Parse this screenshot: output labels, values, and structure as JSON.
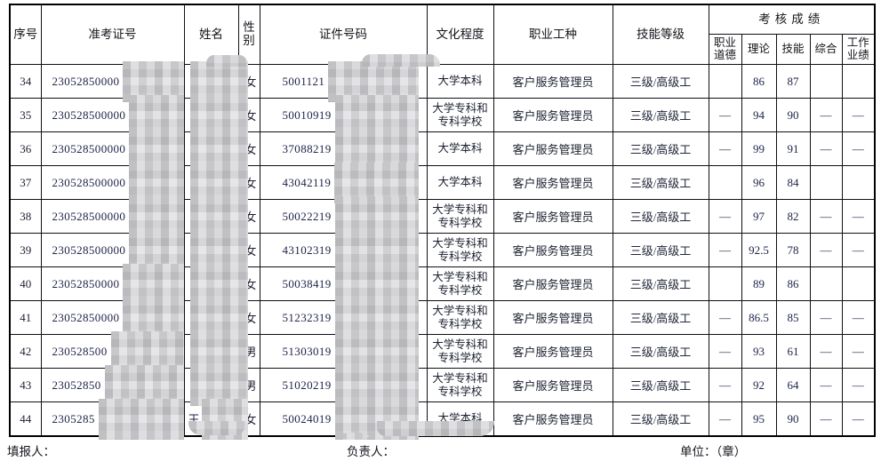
{
  "colors": {
    "border": "#000000",
    "text": "#1c2130",
    "digit_text": "#20264a",
    "redaction_gray": "#cdcdcf",
    "background": "#ffffff"
  },
  "table": {
    "headers": {
      "no": "序号",
      "ticket": "准考证号",
      "name": "姓名",
      "gender": "性别",
      "id_number": "证件号码",
      "education": "文化程度",
      "occupation": "职业工种",
      "skill_level": "技能等级",
      "scores_group": "考核成绩",
      "score_ethics": "职业道德",
      "score_theory": "理论",
      "score_skill": "技能",
      "score_comprehensive": "综合",
      "score_performance": "工作业绩"
    },
    "rows": [
      {
        "no": "34",
        "ticket_visible": "23052850000",
        "name_visible": "",
        "gender": "女",
        "id_visible": "5001121",
        "education": "大学本科",
        "occupation": "客户服务管理员",
        "skill_level": "三级/高级工",
        "ethics": "",
        "theory": "86",
        "skill": "87",
        "comprehensive": "",
        "performance": ""
      },
      {
        "no": "35",
        "ticket_visible": "230528500000",
        "name_visible": "",
        "gender": "女",
        "id_visible": "50010919",
        "education": "大学专科和专科学校",
        "occupation": "客户服务管理员",
        "skill_level": "三级/高级工",
        "ethics": "—",
        "theory": "94",
        "skill": "90",
        "comprehensive": "—",
        "performance": "—"
      },
      {
        "no": "36",
        "ticket_visible": "230528500000",
        "name_visible": "",
        "gender": "女",
        "id_visible": "37088219",
        "education": "大学本科",
        "occupation": "客户服务管理员",
        "skill_level": "三级/高级工",
        "ethics": "—",
        "theory": "99",
        "skill": "91",
        "comprehensive": "—",
        "performance": "—"
      },
      {
        "no": "37",
        "ticket_visible": "230528500000",
        "name_visible": "",
        "gender": "女",
        "id_visible": "43042119",
        "education": "大学本科",
        "occupation": "客户服务管理员",
        "skill_level": "三级/高级工",
        "ethics": "",
        "theory": "96",
        "skill": "84",
        "comprehensive": "",
        "performance": ""
      },
      {
        "no": "38",
        "ticket_visible": "230528500000",
        "name_visible": "",
        "gender": "女",
        "id_visible": "50022219",
        "education": "大学专科和专科学校",
        "occupation": "客户服务管理员",
        "skill_level": "三级/高级工",
        "ethics": "—",
        "theory": "97",
        "skill": "82",
        "comprehensive": "—",
        "performance": "—"
      },
      {
        "no": "39",
        "ticket_visible": "230528500000",
        "name_visible": "",
        "gender": "女",
        "id_visible": "43102319",
        "education": "大学专科和专科学校",
        "occupation": "客户服务管理员",
        "skill_level": "三级/高级工",
        "ethics": "—",
        "theory": "92.5",
        "skill": "78",
        "comprehensive": "—",
        "performance": "—"
      },
      {
        "no": "40",
        "ticket_visible": "23052850000",
        "name_visible": "",
        "gender": "女",
        "id_visible": "50038419",
        "education": "大学专科和专科学校",
        "occupation": "客户服务管理员",
        "skill_level": "三级/高级工",
        "ethics": "",
        "theory": "89",
        "skill": "86",
        "comprehensive": "",
        "performance": ""
      },
      {
        "no": "41",
        "ticket_visible": "23052850000",
        "name_visible": "",
        "gender": "女",
        "id_visible": "51232319",
        "education": "大学专科和专科学校",
        "occupation": "客户服务管理员",
        "skill_level": "三级/高级工",
        "ethics": "—",
        "theory": "86.5",
        "skill": "85",
        "comprehensive": "—",
        "performance": "—"
      },
      {
        "no": "42",
        "ticket_visible": "230528500",
        "name_visible": "",
        "gender": "男",
        "id_visible": "51303019",
        "education": "大学专科和专科学校",
        "occupation": "客户服务管理员",
        "skill_level": "三级/高级工",
        "ethics": "—",
        "theory": "93",
        "skill": "61",
        "comprehensive": "—",
        "performance": "—"
      },
      {
        "no": "43",
        "ticket_visible": "23052850",
        "name_visible": "",
        "gender": "男",
        "id_visible": "51020219",
        "education": "大学专科和专科学校",
        "occupation": "客户服务管理员",
        "skill_level": "三级/高级工",
        "ethics": "—",
        "theory": "92",
        "skill": "64",
        "comprehensive": "—",
        "performance": "—"
      },
      {
        "no": "44",
        "ticket_visible": "2305285",
        "name_visible": "王",
        "gender": "女",
        "id_visible": "50024019",
        "education": "大学本科",
        "occupation": "客户服务管理员",
        "skill_level": "三级/高级工",
        "ethics": "—",
        "theory": "95",
        "skill": "90",
        "comprehensive": "—",
        "performance": "—"
      }
    ]
  },
  "footer": {
    "filler_label": "填报人：",
    "manager_label": "负责人：",
    "unit_label": "单位：（章）"
  }
}
